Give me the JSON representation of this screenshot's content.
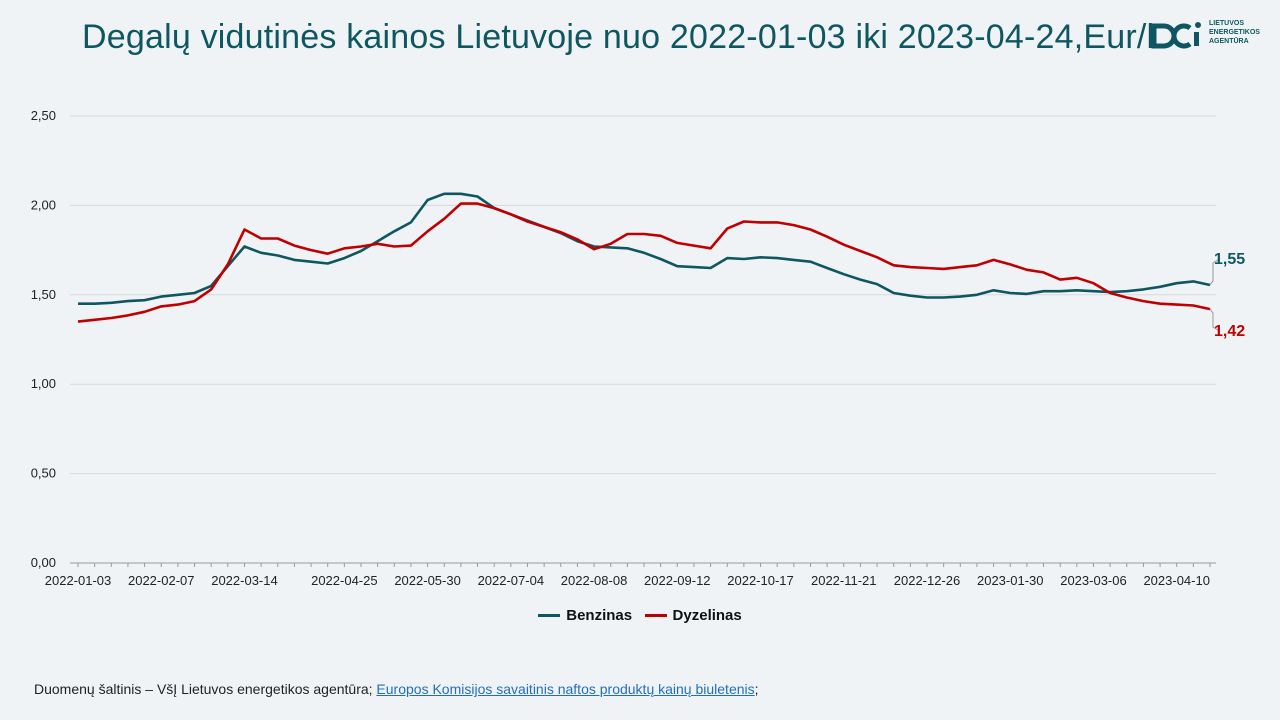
{
  "title": "Degalų vidutinės kainos Lietuvoje nuo 2022-01-03 iki 2023-04-24,Eur/l",
  "logo": {
    "lines": [
      "LIETUVOS",
      "ENERGETIKOS",
      "AGENTŪRA"
    ],
    "icon": "lea-logo-icon",
    "color": "#0e5760"
  },
  "source": {
    "prefix": "Duomenų šaltinis – VšĮ Lietuvos energetikos agentūra; ",
    "link_text": "Europos Komisijos savaitinis naftos produktų kainų biuletenis",
    "suffix": ";"
  },
  "chart_data": {
    "type": "line",
    "title": "Degalų vidutinės kainos Lietuvoje nuo 2022-01-03 iki 2023-04-24,Eur/l",
    "xlabel": "",
    "ylabel": "",
    "ylim": [
      0,
      2.5
    ],
    "y_ticks": [
      "0,00",
      "0,50",
      "1,00",
      "1,50",
      "2,00",
      "2,50"
    ],
    "x_tick_labels": [
      "2022-01-03",
      "2022-02-07",
      "2022-03-14",
      "2022-04-25",
      "2022-05-30",
      "2022-07-04",
      "2022-08-08",
      "2022-09-12",
      "2022-10-17",
      "2022-11-21",
      "2022-12-26",
      "2023-01-30",
      "2023-03-06",
      "2023-04-10"
    ],
    "grid": true,
    "legend_position": "bottom",
    "x": [
      "2022-01-03",
      "2022-01-10",
      "2022-01-17",
      "2022-01-24",
      "2022-01-31",
      "2022-02-07",
      "2022-02-14",
      "2022-02-21",
      "2022-02-28",
      "2022-03-07",
      "2022-03-14",
      "2022-03-21",
      "2022-03-28",
      "2022-04-04",
      "2022-04-11",
      "2022-04-18",
      "2022-04-25",
      "2022-05-02",
      "2022-05-09",
      "2022-05-16",
      "2022-05-23",
      "2022-05-30",
      "2022-06-06",
      "2022-06-13",
      "2022-06-20",
      "2022-06-27",
      "2022-07-04",
      "2022-07-11",
      "2022-07-18",
      "2022-07-25",
      "2022-08-01",
      "2022-08-08",
      "2022-08-15",
      "2022-08-22",
      "2022-08-29",
      "2022-09-05",
      "2022-09-12",
      "2022-09-19",
      "2022-09-26",
      "2022-10-03",
      "2022-10-10",
      "2022-10-17",
      "2022-10-24",
      "2022-10-31",
      "2022-11-07",
      "2022-11-14",
      "2022-11-21",
      "2022-11-28",
      "2022-12-05",
      "2022-12-12",
      "2022-12-19",
      "2022-12-26",
      "2023-01-02",
      "2023-01-09",
      "2023-01-16",
      "2023-01-23",
      "2023-01-30",
      "2023-02-06",
      "2023-02-13",
      "2023-02-20",
      "2023-02-27",
      "2023-03-06",
      "2023-03-13",
      "2023-03-20",
      "2023-03-27",
      "2023-04-03",
      "2023-04-10",
      "2023-04-17",
      "2023-04-24"
    ],
    "series": [
      {
        "name": "Benzinas",
        "color": "#0e5760",
        "end_label": "1,55",
        "values": [
          1.45,
          1.45,
          1.455,
          1.465,
          1.47,
          1.49,
          1.5,
          1.51,
          1.55,
          1.66,
          1.77,
          1.735,
          1.72,
          1.695,
          1.685,
          1.675,
          1.705,
          1.745,
          1.8,
          1.855,
          1.905,
          2.03,
          2.065,
          2.065,
          2.05,
          1.985,
          1.95,
          1.915,
          1.88,
          1.845,
          1.8,
          1.77,
          1.765,
          1.76,
          1.735,
          1.7,
          1.66,
          1.655,
          1.65,
          1.705,
          1.7,
          1.71,
          1.705,
          1.695,
          1.685,
          1.65,
          1.615,
          1.585,
          1.56,
          1.51,
          1.495,
          1.485,
          1.485,
          1.49,
          1.5,
          1.525,
          1.51,
          1.505,
          1.52,
          1.52,
          1.525,
          1.52,
          1.515,
          1.52,
          1.53,
          1.545,
          1.565,
          1.575,
          1.555
        ]
      },
      {
        "name": "Dyzelinas",
        "color": "#c00000",
        "end_label": "1,42",
        "values": [
          1.35,
          1.36,
          1.37,
          1.385,
          1.405,
          1.435,
          1.445,
          1.465,
          1.53,
          1.67,
          1.865,
          1.815,
          1.815,
          1.775,
          1.75,
          1.73,
          1.76,
          1.77,
          1.785,
          1.77,
          1.775,
          1.855,
          1.925,
          2.01,
          2.01,
          1.985,
          1.95,
          1.91,
          1.88,
          1.85,
          1.81,
          1.755,
          1.785,
          1.84,
          1.84,
          1.83,
          1.79,
          1.775,
          1.76,
          1.87,
          1.91,
          1.905,
          1.905,
          1.89,
          1.865,
          1.825,
          1.78,
          1.745,
          1.71,
          1.665,
          1.655,
          1.65,
          1.645,
          1.655,
          1.665,
          1.695,
          1.67,
          1.64,
          1.625,
          1.585,
          1.595,
          1.565,
          1.51,
          1.485,
          1.465,
          1.45,
          1.445,
          1.44,
          1.42
        ]
      }
    ]
  }
}
